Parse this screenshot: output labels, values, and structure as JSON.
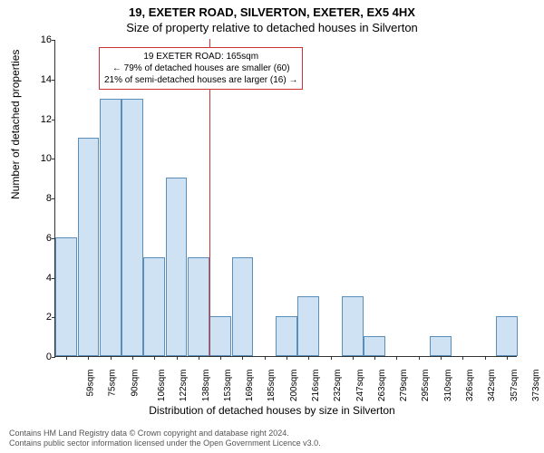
{
  "title_main": "19, EXETER ROAD, SILVERTON, EXETER, EX5 4HX",
  "title_sub": "Size of property relative to detached houses in Silverton",
  "y_axis_label": "Number of detached properties",
  "x_axis_label": "Distribution of detached houses by size in Silverton",
  "annotation": {
    "line1": "19 EXETER ROAD: 165sqm",
    "line2": "← 79% of detached houses are smaller (60)",
    "line3": "21% of semi-detached houses are larger (16) →"
  },
  "chart": {
    "type": "bar",
    "ylim": [
      0,
      16
    ],
    "ytick_step": 2,
    "bar_fill": "#cfe2f3",
    "bar_stroke": "#5b8fb9",
    "marker_color": "#cc3333",
    "marker_x_label": "169sqm",
    "x_labels": [
      "59sqm",
      "75sqm",
      "90sqm",
      "106sqm",
      "122sqm",
      "138sqm",
      "153sqm",
      "169sqm",
      "185sqm",
      "200sqm",
      "216sqm",
      "232sqm",
      "247sqm",
      "263sqm",
      "279sqm",
      "295sqm",
      "310sqm",
      "326sqm",
      "342sqm",
      "357sqm",
      "373sqm"
    ],
    "values": [
      6,
      11,
      13,
      13,
      5,
      9,
      5,
      2,
      5,
      0,
      2,
      3,
      0,
      3,
      1,
      0,
      0,
      1,
      0,
      0,
      2
    ]
  },
  "footer": {
    "line1": "Contains HM Land Registry data © Crown copyright and database right 2024.",
    "line2": "Contains public sector information licensed under the Open Government Licence v3.0."
  }
}
